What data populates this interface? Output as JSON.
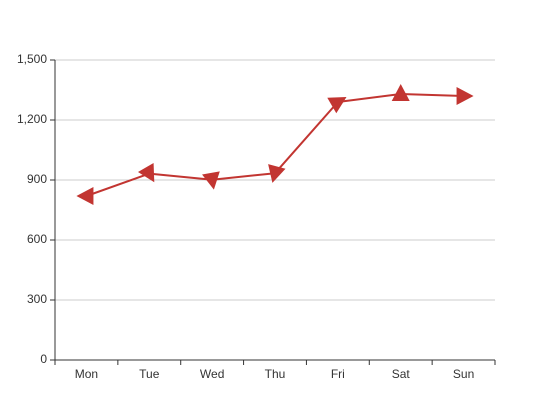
{
  "chart_data": {
    "type": "line",
    "categories": [
      "Mon",
      "Tue",
      "Wed",
      "Thu",
      "Fri",
      "Sat",
      "Sun"
    ],
    "series": [
      {
        "values": [
          820,
          932,
          901,
          934,
          1290,
          1330,
          1320
        ],
        "color": "#c23531",
        "marker": "triangle",
        "marker_rotations_deg": [
          -90,
          150,
          170,
          -165,
          60,
          0,
          90
        ]
      }
    ],
    "ylim": [
      0,
      1500
    ],
    "yticks": [
      0,
      300,
      600,
      900,
      1200,
      1500
    ],
    "ytick_labels": [
      "0",
      "300",
      "600",
      "900",
      "1,200",
      "1,500"
    ],
    "grid": true,
    "gridline_color": "#cccccc",
    "axis_color": "#333333"
  }
}
